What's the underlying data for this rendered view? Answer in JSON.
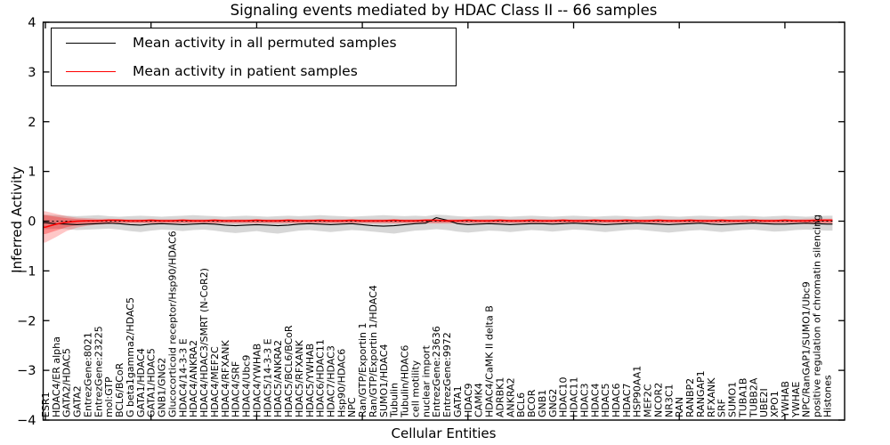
{
  "figure": {
    "title": "Signaling events mediated by HDAC Class II -- 66 samples",
    "ylabel": "Inferred Activity",
    "xlabel": "Cellular Entities"
  },
  "legend": {
    "items": [
      {
        "label": "Mean activity in all permuted samples",
        "color": "#000000"
      },
      {
        "label": "Mean activity in patient samples",
        "color": "#ff0000"
      }
    ]
  },
  "chart_data": {
    "type": "line",
    "title": "Signaling events mediated by HDAC Class II -- 66 samples",
    "xlabel": "Cellular Entities",
    "ylabel": "Inferred Activity",
    "ylim": [
      -4,
      4
    ],
    "yticks": [
      "4",
      "3",
      "2",
      "1",
      "0",
      "−1",
      "−2",
      "−3",
      "−4"
    ],
    "ytick_values": [
      4,
      3,
      2,
      1,
      0,
      -1,
      -2,
      -3,
      -4
    ],
    "x_major_tick_every": 10,
    "zero_line": true,
    "legend_position": "upper left",
    "categories": [
      "ESR1",
      "HDAC4/ER alpha",
      "GATA2/HDAC5",
      "GATA2",
      "EntrezGene:8021",
      "EntrezGene:23225",
      "mol:GTP",
      "BCL6/BCoR",
      "G beta1gamma2/HDAC5",
      "GATA1/HDAC4",
      "GATA1/HDAC5",
      "GNB1/GNG2",
      "Glucocorticoid receptor/Hsp90/HDAC6",
      "HDAC4/14-3-3 E",
      "HDAC4/ANKRA2",
      "HDAC4/HDAC3/SMRT (N-CoR2)",
      "HDAC4/MEF2C",
      "HDAC4/RFXANK",
      "HDAC4/SRF",
      "HDAC4/Ubc9",
      "HDAC4/YWHAB",
      "HDAC5/14-3-3 E",
      "HDAC5/ANKRA2",
      "HDAC5/BCL6/BCoR",
      "HDAC5/RFXANK",
      "HDAC5/YWHAB",
      "HDAC6/HDAC11",
      "HDAC7/HDAC3",
      "Hsp90/HDAC6",
      "NPC",
      "Ran/GTP/Exportin 1",
      "Ran/GTP/Exportin 1/HDAC4",
      "SUMO1/HDAC4",
      "Tubulin",
      "Tubulin/HDAC6",
      "cell motility",
      "nuclear import",
      "EntrezGene:23636",
      "EntrezGene:9972",
      "GATA1",
      "HDAC9",
      "CAMK4",
      "HDAC4/CaMK II delta B",
      "ADRBK1",
      "ANKRA2",
      "BCL6",
      "BCOR",
      "GNB1",
      "GNG2",
      "HDAC10",
      "HDAC11",
      "HDAC3",
      "HDAC4",
      "HDAC5",
      "HDAC6",
      "HDAC7",
      "HSP90AA1",
      "MEF2C",
      "NCOR2",
      "NR3C1",
      "RAN",
      "RANBP2",
      "RANGAP1",
      "RFXANK",
      "SRF",
      "SUMO1",
      "TUBA1B",
      "TUBB2A",
      "UBE2I",
      "XPO1",
      "YWHAB",
      "YWHAE",
      "NPC/RanGAP1/SUMO1/Ubc9",
      "positive regulation of chromatin silencing",
      "Histones"
    ],
    "series": [
      {
        "name": "Mean activity in all permuted samples",
        "color": "#000000",
        "values": [
          -0.03,
          -0.05,
          -0.06,
          -0.07,
          -0.06,
          -0.05,
          -0.04,
          -0.05,
          -0.07,
          -0.08,
          -0.06,
          -0.05,
          -0.06,
          -0.07,
          -0.06,
          -0.05,
          -0.06,
          -0.08,
          -0.09,
          -0.08,
          -0.07,
          -0.08,
          -0.09,
          -0.08,
          -0.06,
          -0.05,
          -0.06,
          -0.07,
          -0.06,
          -0.05,
          -0.07,
          -0.09,
          -0.1,
          -0.09,
          -0.07,
          -0.05,
          -0.04,
          0.07,
          0.02,
          -0.05,
          -0.07,
          -0.06,
          -0.05,
          -0.06,
          -0.07,
          -0.06,
          -0.05,
          -0.05,
          -0.06,
          -0.05,
          -0.04,
          -0.05,
          -0.06,
          -0.07,
          -0.06,
          -0.05,
          -0.04,
          -0.05,
          -0.06,
          -0.07,
          -0.06,
          -0.05,
          -0.04,
          -0.06,
          -0.07,
          -0.06,
          -0.05,
          -0.04,
          -0.05,
          -0.06,
          -0.06,
          -0.05,
          -0.04,
          -0.05,
          -0.06
        ]
      },
      {
        "name": "Mean activity in patient samples",
        "color": "#ff0000",
        "values": [
          -0.12,
          -0.06,
          -0.02,
          0.0,
          0.01,
          0.01,
          0.02,
          0.02,
          0.01,
          0.01,
          0.02,
          0.01,
          0.01,
          0.02,
          0.01,
          0.01,
          0.02,
          0.01,
          0.01,
          0.01,
          0.02,
          0.01,
          0.01,
          0.02,
          0.01,
          0.01,
          0.02,
          0.01,
          0.01,
          0.02,
          0.01,
          0.01,
          0.01,
          0.02,
          0.01,
          0.01,
          0.02,
          0.02,
          0.01,
          0.01,
          0.02,
          0.01,
          0.01,
          0.02,
          0.01,
          0.01,
          0.02,
          0.01,
          0.01,
          0.02,
          0.01,
          0.01,
          0.02,
          0.01,
          0.01,
          0.02,
          0.01,
          0.01,
          0.02,
          0.01,
          0.01,
          0.02,
          0.01,
          0.01,
          0.02,
          0.01,
          0.01,
          0.02,
          0.01,
          0.01,
          0.02,
          0.01,
          0.01,
          0.02,
          0.02
        ]
      }
    ],
    "bands": [
      {
        "name": "permuted-samples-range",
        "color": "rgba(110,110,110,0.28)",
        "upper": [
          0.13,
          0.12,
          0.11,
          0.1,
          0.11,
          0.12,
          0.1,
          0.09,
          0.1,
          0.11,
          0.1,
          0.09,
          0.1,
          0.11,
          0.12,
          0.11,
          0.1,
          0.09,
          0.1,
          0.11,
          0.1,
          0.09,
          0.1,
          0.11,
          0.1,
          0.11,
          0.12,
          0.11,
          0.1,
          0.09,
          0.1,
          0.11,
          0.12,
          0.11,
          0.1,
          0.11,
          0.1,
          0.13,
          0.12,
          0.1,
          0.09,
          0.1,
          0.11,
          0.1,
          0.09,
          0.1,
          0.11,
          0.1,
          0.09,
          0.1,
          0.11,
          0.1,
          0.09,
          0.1,
          0.11,
          0.1,
          0.09,
          0.1,
          0.11,
          0.1,
          0.09,
          0.1,
          0.11,
          0.1,
          0.09,
          0.1,
          0.11,
          0.1,
          0.09,
          0.1,
          0.11,
          0.1,
          0.09,
          0.1,
          0.11
        ],
        "lower": [
          -0.16,
          -0.15,
          -0.16,
          -0.18,
          -0.17,
          -0.16,
          -0.15,
          -0.17,
          -0.2,
          -0.22,
          -0.19,
          -0.17,
          -0.18,
          -0.2,
          -0.18,
          -0.17,
          -0.19,
          -0.22,
          -0.24,
          -0.22,
          -0.2,
          -0.23,
          -0.25,
          -0.22,
          -0.19,
          -0.18,
          -0.2,
          -0.22,
          -0.2,
          -0.18,
          -0.19,
          -0.21,
          -0.23,
          -0.25,
          -0.22,
          -0.19,
          -0.18,
          -0.16,
          -0.18,
          -0.21,
          -0.23,
          -0.21,
          -0.19,
          -0.2,
          -0.22,
          -0.2,
          -0.18,
          -0.19,
          -0.21,
          -0.19,
          -0.17,
          -0.18,
          -0.2,
          -0.22,
          -0.2,
          -0.18,
          -0.17,
          -0.19,
          -0.21,
          -0.23,
          -0.21,
          -0.19,
          -0.18,
          -0.2,
          -0.22,
          -0.2,
          -0.18,
          -0.17,
          -0.19,
          -0.21,
          -0.2,
          -0.18,
          -0.17,
          -0.18,
          -0.19
        ]
      },
      {
        "name": "patient-samples-range-outer",
        "color": "rgba(255,0,0,0.22)",
        "upper": [
          0.2,
          0.15,
          0.1,
          0.07,
          0.06,
          0.05,
          0.05,
          0.04,
          0.04,
          0.04,
          0.04,
          0.04,
          0.04,
          0.04,
          0.04,
          0.04,
          0.04,
          0.04,
          0.04,
          0.04,
          0.04,
          0.04,
          0.04,
          0.04,
          0.04,
          0.04,
          0.04,
          0.04,
          0.04,
          0.04,
          0.04,
          0.04,
          0.04,
          0.04,
          0.04,
          0.04,
          0.04,
          0.04,
          0.04,
          0.04,
          0.04,
          0.04,
          0.04,
          0.04,
          0.04,
          0.04,
          0.04,
          0.04,
          0.04,
          0.04,
          0.04,
          0.04,
          0.04,
          0.04,
          0.04,
          0.04,
          0.04,
          0.04,
          0.04,
          0.04,
          0.04,
          0.04,
          0.04,
          0.04,
          0.04,
          0.04,
          0.04,
          0.04,
          0.04,
          0.04,
          0.04,
          0.04,
          0.05,
          0.05,
          0.05
        ],
        "lower": [
          -0.43,
          -0.32,
          -0.2,
          -0.13,
          -0.09,
          -0.07,
          -0.06,
          -0.05,
          -0.05,
          -0.05,
          -0.05,
          -0.05,
          -0.05,
          -0.05,
          -0.05,
          -0.05,
          -0.05,
          -0.05,
          -0.05,
          -0.05,
          -0.05,
          -0.05,
          -0.05,
          -0.05,
          -0.05,
          -0.05,
          -0.05,
          -0.05,
          -0.05,
          -0.05,
          -0.05,
          -0.05,
          -0.05,
          -0.05,
          -0.05,
          -0.05,
          -0.05,
          -0.05,
          -0.05,
          -0.05,
          -0.05,
          -0.05,
          -0.05,
          -0.05,
          -0.05,
          -0.05,
          -0.05,
          -0.05,
          -0.05,
          -0.05,
          -0.05,
          -0.05,
          -0.05,
          -0.05,
          -0.05,
          -0.05,
          -0.05,
          -0.05,
          -0.05,
          -0.05,
          -0.05,
          -0.05,
          -0.05,
          -0.05,
          -0.05,
          -0.05,
          -0.05,
          -0.05,
          -0.05,
          -0.05,
          -0.05,
          -0.05,
          -0.06,
          -0.06,
          -0.06
        ]
      },
      {
        "name": "patient-samples-range-inner",
        "color": "rgba(255,0,0,0.30)",
        "upper": [
          0.12,
          0.09,
          0.06,
          0.04,
          0.03,
          0.03,
          0.03,
          0.02,
          0.02,
          0.02,
          0.02,
          0.02,
          0.02,
          0.02,
          0.02,
          0.02,
          0.02,
          0.02,
          0.02,
          0.02,
          0.02,
          0.02,
          0.02,
          0.02,
          0.02,
          0.02,
          0.02,
          0.02,
          0.02,
          0.02,
          0.02,
          0.02,
          0.02,
          0.02,
          0.02,
          0.02,
          0.02,
          0.02,
          0.02,
          0.02,
          0.02,
          0.02,
          0.02,
          0.02,
          0.02,
          0.02,
          0.02,
          0.02,
          0.02,
          0.02,
          0.02,
          0.02,
          0.02,
          0.02,
          0.02,
          0.02,
          0.02,
          0.02,
          0.02,
          0.02,
          0.02,
          0.02,
          0.02,
          0.02,
          0.02,
          0.02,
          0.02,
          0.02,
          0.02,
          0.02,
          0.02,
          0.02,
          0.02,
          0.02,
          0.02
        ],
        "lower": [
          -0.26,
          -0.19,
          -0.12,
          -0.08,
          -0.05,
          -0.04,
          -0.03,
          -0.03,
          -0.03,
          -0.03,
          -0.03,
          -0.03,
          -0.03,
          -0.03,
          -0.03,
          -0.03,
          -0.03,
          -0.03,
          -0.03,
          -0.03,
          -0.03,
          -0.03,
          -0.03,
          -0.03,
          -0.03,
          -0.03,
          -0.03,
          -0.03,
          -0.03,
          -0.03,
          -0.03,
          -0.03,
          -0.03,
          -0.03,
          -0.03,
          -0.03,
          -0.03,
          -0.03,
          -0.03,
          -0.03,
          -0.03,
          -0.03,
          -0.03,
          -0.03,
          -0.03,
          -0.03,
          -0.03,
          -0.03,
          -0.03,
          -0.03,
          -0.03,
          -0.03,
          -0.03,
          -0.03,
          -0.03,
          -0.03,
          -0.03,
          -0.03,
          -0.03,
          -0.03,
          -0.03,
          -0.03,
          -0.03,
          -0.03,
          -0.03,
          -0.03,
          -0.03,
          -0.03,
          -0.03,
          -0.03,
          -0.03,
          -0.03,
          -0.03,
          -0.03,
          -0.03
        ]
      }
    ]
  }
}
